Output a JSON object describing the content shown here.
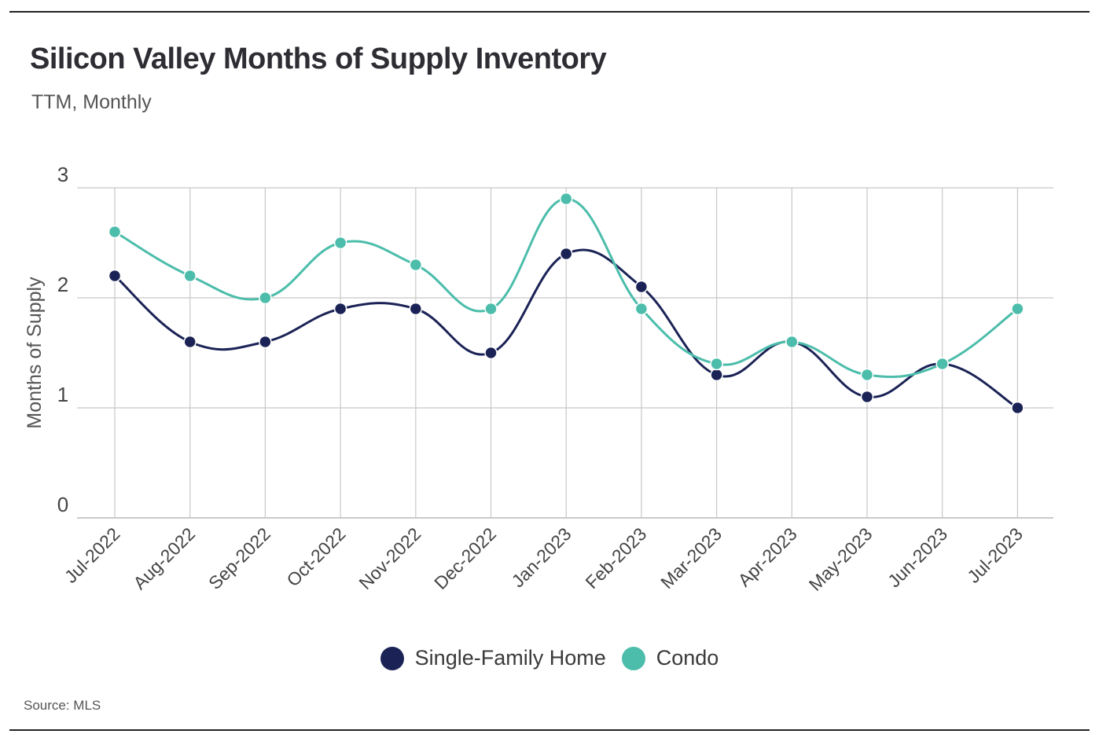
{
  "header": {
    "title": "Silicon Valley Months of Supply Inventory",
    "subtitle": "TTM, Monthly"
  },
  "footer": {
    "source": "Source:  MLS"
  },
  "colors": {
    "single_family": "#1b2356",
    "condo": "#4cbdab",
    "grid": "#c8c8c8"
  },
  "chart_data": {
    "type": "line",
    "title": "Silicon Valley Months of Supply Inventory",
    "subtitle": "TTM, Monthly",
    "xlabel": "",
    "ylabel": "Months of Supply",
    "ylim": [
      0,
      3
    ],
    "yticks": [
      0,
      1,
      2,
      3
    ],
    "grid": true,
    "legend_position": "bottom-center",
    "categories": [
      "Jul-2022",
      "Aug-2022",
      "Sep-2022",
      "Oct-2022",
      "Nov-2022",
      "Dec-2022",
      "Jan-2023",
      "Feb-2023",
      "Mar-2023",
      "Apr-2023",
      "May-2023",
      "Jun-2023",
      "Jul-2023"
    ],
    "series": [
      {
        "name": "Single-Family Home",
        "color": "#1b2356",
        "values": [
          2.2,
          1.6,
          1.6,
          1.9,
          1.9,
          1.5,
          2.4,
          2.1,
          1.3,
          1.6,
          1.1,
          1.4,
          1.0
        ]
      },
      {
        "name": "Condo",
        "color": "#4cbdab",
        "values": [
          2.6,
          2.2,
          2.0,
          2.5,
          2.3,
          1.9,
          2.9,
          1.9,
          1.4,
          1.6,
          1.3,
          1.4,
          1.9
        ]
      }
    ]
  }
}
